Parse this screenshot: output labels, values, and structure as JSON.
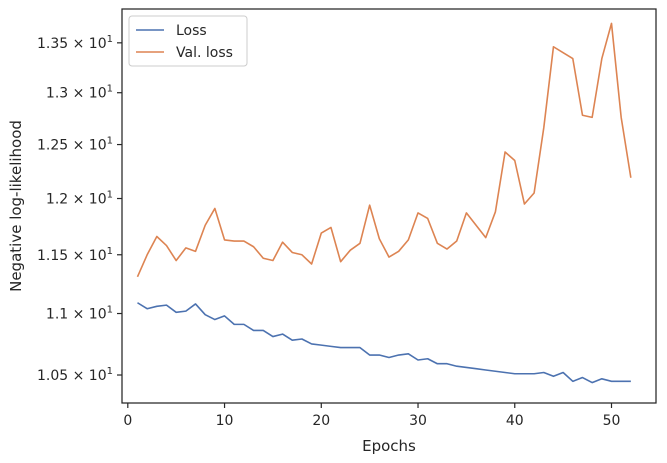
{
  "chart_data": {
    "type": "line",
    "xlabel": "Epochs",
    "ylabel": "Negative log-likelihood",
    "y_scale": "log",
    "xlim": [
      -0.6,
      54.6
    ],
    "ylim": [
      10.28,
      13.85
    ],
    "x_ticks": [
      {
        "value": 0,
        "label": "0"
      },
      {
        "value": 10,
        "label": "10"
      },
      {
        "value": 20,
        "label": "20"
      },
      {
        "value": 30,
        "label": "30"
      },
      {
        "value": 40,
        "label": "40"
      },
      {
        "value": 50,
        "label": "50"
      }
    ],
    "y_ticks": [
      {
        "value": 10.5,
        "mantissa": "1.05",
        "times": "×",
        "base": "10",
        "exp": "1"
      },
      {
        "value": 11.0,
        "mantissa": "1.1",
        "times": "×",
        "base": "10",
        "exp": "1"
      },
      {
        "value": 11.5,
        "mantissa": "1.15",
        "times": "×",
        "base": "10",
        "exp": "1"
      },
      {
        "value": 12.0,
        "mantissa": "1.2",
        "times": "×",
        "base": "10",
        "exp": "1"
      },
      {
        "value": 12.5,
        "mantissa": "1.25",
        "times": "×",
        "base": "10",
        "exp": "1"
      },
      {
        "value": 13.0,
        "mantissa": "1.3",
        "times": "×",
        "base": "10",
        "exp": "1"
      },
      {
        "value": 13.5,
        "mantissa": "1.35",
        "times": "×",
        "base": "10",
        "exp": "1"
      }
    ],
    "legend_position": "top-left",
    "grid": false,
    "x": [
      1,
      2,
      3,
      4,
      5,
      6,
      7,
      8,
      9,
      10,
      11,
      12,
      13,
      14,
      15,
      16,
      17,
      18,
      19,
      20,
      21,
      22,
      23,
      24,
      25,
      26,
      27,
      28,
      29,
      30,
      31,
      32,
      33,
      34,
      35,
      36,
      37,
      38,
      39,
      40,
      41,
      42,
      43,
      44,
      45,
      46,
      47,
      48,
      49,
      50,
      51,
      52
    ],
    "series": [
      {
        "name": "Loss",
        "color": "#4c72b0",
        "values": [
          11.09,
          11.04,
          11.06,
          11.07,
          11.01,
          11.02,
          11.08,
          10.99,
          10.95,
          10.98,
          10.91,
          10.91,
          10.86,
          10.86,
          10.81,
          10.83,
          10.78,
          10.79,
          10.75,
          10.74,
          10.73,
          10.72,
          10.72,
          10.72,
          10.66,
          10.66,
          10.64,
          10.66,
          10.67,
          10.62,
          10.63,
          10.59,
          10.59,
          10.57,
          10.56,
          10.55,
          10.54,
          10.53,
          10.52,
          10.51,
          10.51,
          10.51,
          10.52,
          10.49,
          10.52,
          10.45,
          10.48,
          10.44,
          10.47,
          10.45,
          10.45,
          10.45
        ]
      },
      {
        "name": "Val. loss",
        "color": "#dd8452",
        "values": [
          11.31,
          11.5,
          11.66,
          11.58,
          11.45,
          11.56,
          11.53,
          11.76,
          11.91,
          11.63,
          11.62,
          11.62,
          11.57,
          11.47,
          11.45,
          11.61,
          11.52,
          11.5,
          11.42,
          11.69,
          11.74,
          11.44,
          11.54,
          11.6,
          11.94,
          11.64,
          11.48,
          11.53,
          11.63,
          11.87,
          11.82,
          11.6,
          11.55,
          11.62,
          11.87,
          11.76,
          11.65,
          11.88,
          12.43,
          12.35,
          11.95,
          12.05,
          12.66,
          13.46,
          13.4,
          13.34,
          12.78,
          12.76,
          13.34,
          13.7,
          12.76,
          12.19
        ]
      }
    ]
  }
}
